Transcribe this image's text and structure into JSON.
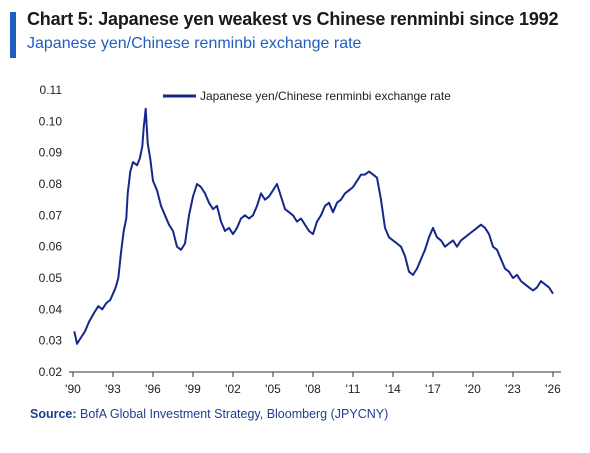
{
  "header": {
    "title": "Chart 5: Japanese yen weakest vs Chinese renminbi since 1992",
    "subtitle": "Japanese yen/Chinese renminbi exchange rate"
  },
  "source": {
    "label": "Source:",
    "text": " BofA Global Investment Strategy, Bloomberg (JPYCNY)"
  },
  "colors": {
    "accent": "#1f5fbf",
    "series": "#15288a",
    "axis": "#333333"
  },
  "chart_data": {
    "type": "line",
    "legend_position": "top-center",
    "grid": false,
    "xlim": [
      1990.0,
      2026.3
    ],
    "ylim": [
      0.02,
      0.11
    ],
    "x_ticks": [
      1990,
      1993,
      1996,
      1999,
      2002,
      2005,
      2008,
      2011,
      2014,
      2017,
      2020,
      2023,
      2026
    ],
    "x_tick_labels": [
      "'90",
      "'93",
      "'96",
      "'99",
      "'02",
      "'05",
      "'08",
      "'11",
      "'14",
      "'17",
      "'20",
      "'23",
      "'26"
    ],
    "y_ticks": [
      0.02,
      0.03,
      0.04,
      0.05,
      0.06,
      0.07,
      0.08,
      0.09,
      0.1,
      0.11
    ],
    "y_tick_labels": [
      "0.02",
      "0.03",
      "0.04",
      "0.05",
      "0.06",
      "0.07",
      "0.08",
      "0.09",
      "0.10",
      "0.11"
    ],
    "series": [
      {
        "name": "Japanese yen/Chinese renminbi exchange rate",
        "x": [
          1990.1,
          1990.3,
          1990.6,
          1990.9,
          1991.2,
          1991.6,
          1991.9,
          1992.2,
          1992.5,
          1992.8,
          1993.0,
          1993.2,
          1993.4,
          1993.6,
          1993.8,
          1994.0,
          1994.1,
          1994.3,
          1994.5,
          1994.8,
          1995.0,
          1995.2,
          1995.3,
          1995.45,
          1995.6,
          1995.8,
          1996.0,
          1996.3,
          1996.6,
          1996.9,
          1997.2,
          1997.5,
          1997.8,
          1998.1,
          1998.4,
          1998.7,
          1999.0,
          1999.3,
          1999.6,
          1999.9,
          2000.2,
          2000.5,
          2000.8,
          2001.1,
          2001.4,
          2001.7,
          2002.0,
          2002.3,
          2002.6,
          2002.9,
          2003.2,
          2003.5,
          2003.8,
          2004.1,
          2004.4,
          2004.7,
          2005.0,
          2005.3,
          2005.6,
          2005.9,
          2006.2,
          2006.5,
          2006.8,
          2007.1,
          2007.4,
          2007.7,
          2008.0,
          2008.3,
          2008.6,
          2008.9,
          2009.2,
          2009.5,
          2009.8,
          2010.1,
          2010.4,
          2010.7,
          2011.0,
          2011.3,
          2011.6,
          2011.9,
          2012.2,
          2012.5,
          2012.8,
          2013.1,
          2013.4,
          2013.7,
          2014.0,
          2014.3,
          2014.6,
          2014.9,
          2015.2,
          2015.5,
          2015.8,
          2016.1,
          2016.4,
          2016.7,
          2017.0,
          2017.3,
          2017.6,
          2017.9,
          2018.2,
          2018.5,
          2018.8,
          2019.1,
          2019.4,
          2019.7,
          2020.0,
          2020.3,
          2020.6,
          2020.9,
          2021.2,
          2021.5,
          2021.8,
          2022.1,
          2022.4,
          2022.7,
          2023.0,
          2023.3,
          2023.6,
          2023.9,
          2024.2,
          2024.5,
          2024.8,
          2025.1,
          2025.4,
          2025.7,
          2026.0
        ],
        "values": [
          0.033,
          0.029,
          0.031,
          0.033,
          0.036,
          0.039,
          0.041,
          0.04,
          0.042,
          0.043,
          0.045,
          0.047,
          0.05,
          0.058,
          0.065,
          0.069,
          0.077,
          0.084,
          0.087,
          0.086,
          0.088,
          0.092,
          0.098,
          0.104,
          0.093,
          0.088,
          0.081,
          0.078,
          0.073,
          0.07,
          0.067,
          0.065,
          0.06,
          0.059,
          0.061,
          0.07,
          0.076,
          0.08,
          0.079,
          0.077,
          0.074,
          0.072,
          0.073,
          0.068,
          0.065,
          0.066,
          0.064,
          0.066,
          0.069,
          0.07,
          0.069,
          0.07,
          0.073,
          0.077,
          0.075,
          0.076,
          0.078,
          0.08,
          0.076,
          0.072,
          0.071,
          0.07,
          0.068,
          0.069,
          0.067,
          0.065,
          0.064,
          0.068,
          0.07,
          0.073,
          0.074,
          0.071,
          0.074,
          0.075,
          0.077,
          0.078,
          0.079,
          0.081,
          0.083,
          0.083,
          0.084,
          0.083,
          0.082,
          0.075,
          0.066,
          0.063,
          0.062,
          0.061,
          0.06,
          0.057,
          0.052,
          0.051,
          0.053,
          0.056,
          0.059,
          0.063,
          0.066,
          0.063,
          0.062,
          0.06,
          0.061,
          0.062,
          0.06,
          0.062,
          0.063,
          0.064,
          0.065,
          0.066,
          0.067,
          0.066,
          0.064,
          0.06,
          0.059,
          0.056,
          0.053,
          0.052,
          0.05,
          0.051,
          0.049,
          0.048,
          0.047,
          0.046,
          0.047,
          0.049,
          0.048,
          0.047,
          0.045
        ]
      }
    ]
  }
}
